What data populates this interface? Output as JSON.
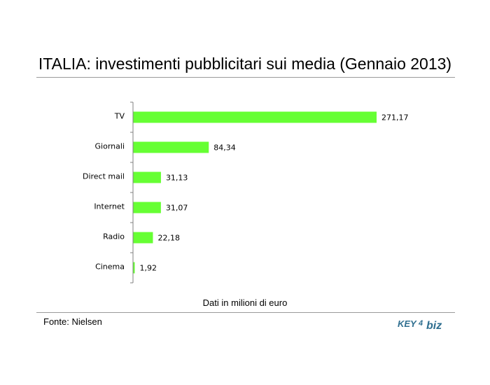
{
  "colors": {
    "bar": "#66ff33",
    "axis": "#808080",
    "rule": "#9a9a9a",
    "logo": "#2f6f90"
  },
  "chart_data": {
    "type": "bar",
    "orientation": "horizontal",
    "title": "ITALIA: investimenti pubblicitari sui media (Gennaio 2013)",
    "categories": [
      "TV",
      "Giornali",
      "Direct mail",
      "Internet",
      "Radio",
      "Cinema"
    ],
    "values": [
      271.17,
      84.34,
      31.13,
      31.07,
      22.18,
      1.92
    ],
    "value_labels": [
      "271,17",
      "84,34",
      "31,13",
      "31,07",
      "22,18",
      "1,92"
    ],
    "xlim": [
      0,
      271.17
    ],
    "xlabel": "Dati in milioni di euro",
    "grid": false,
    "legend": "none"
  },
  "footer": {
    "source": "Fonte: Nielsen",
    "logo_text": "KEY4biz",
    "logo_left": "KEY",
    "logo_mid": "4",
    "logo_right": "biz"
  }
}
